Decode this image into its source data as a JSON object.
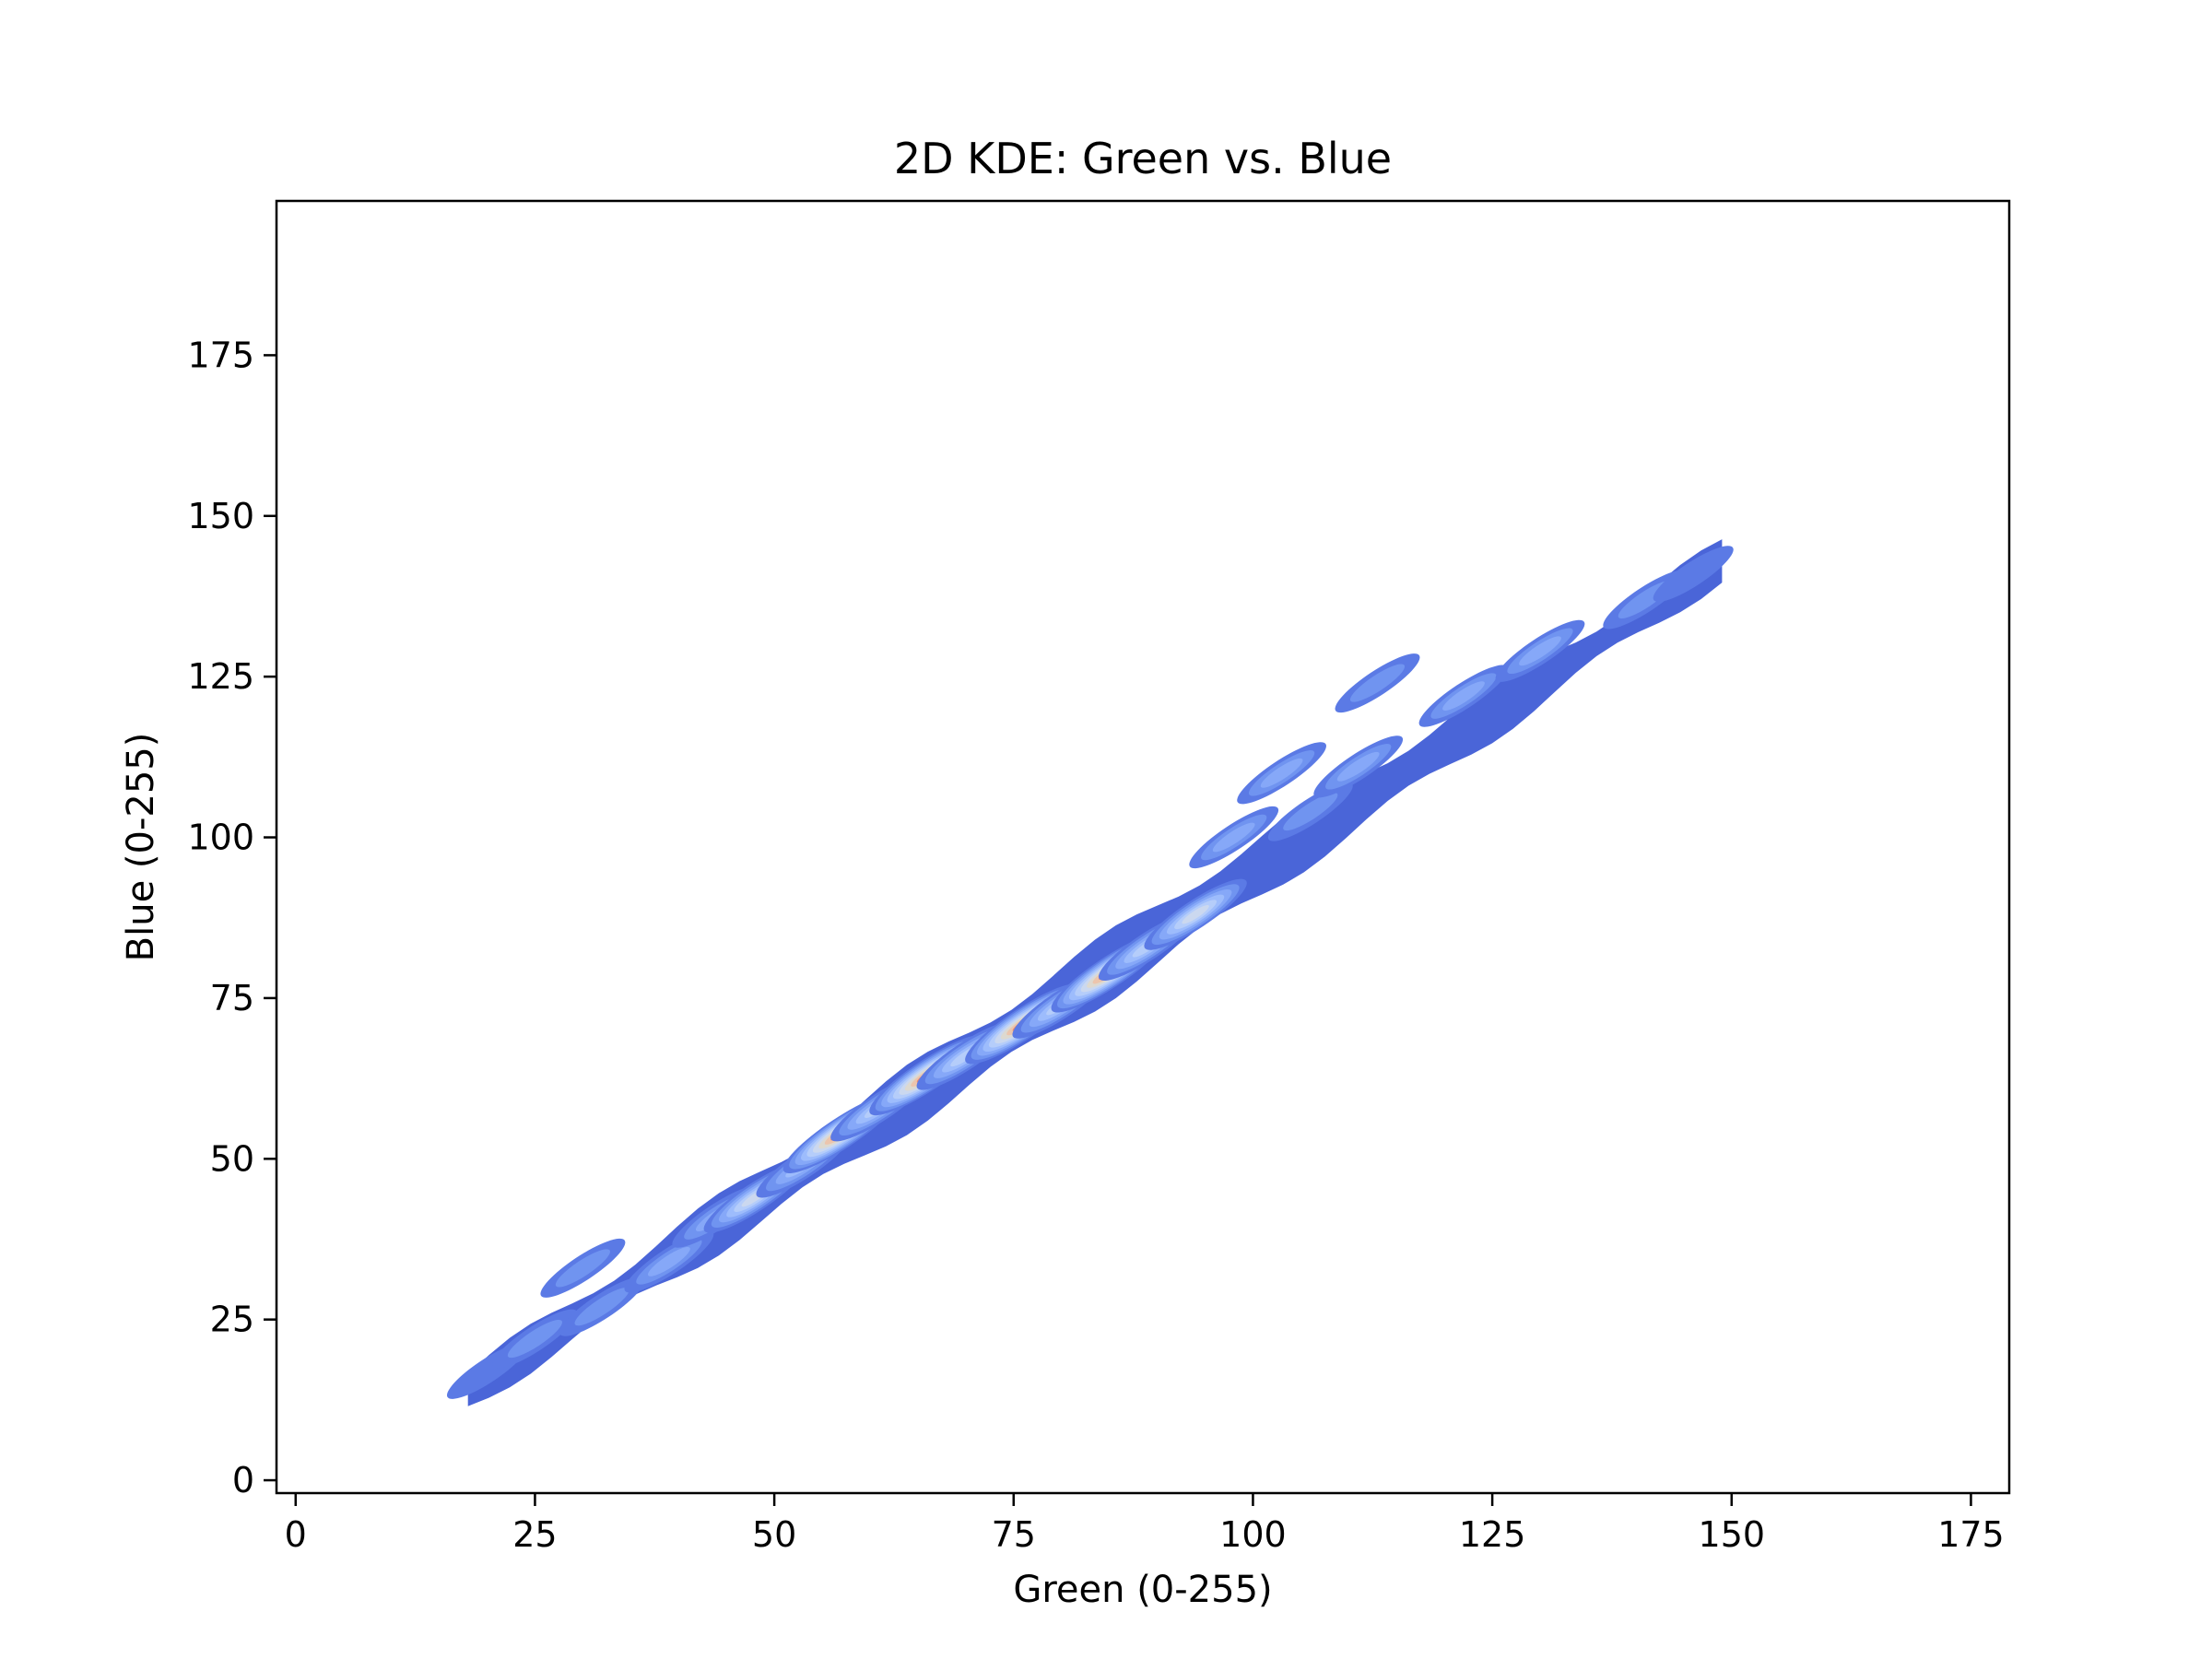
{
  "chart_data": {
    "type": "heatmap",
    "subtype": "2d-kde-filled-contour",
    "title": "2D KDE: Green vs. Blue",
    "xlabel": "Green (0-255)",
    "ylabel": "Blue (0-255)",
    "xlim": [
      -2,
      179
    ],
    "ylim": [
      -2,
      199
    ],
    "x_ticks": [
      0,
      25,
      50,
      75,
      100,
      125,
      150,
      175
    ],
    "y_ticks": [
      0,
      25,
      50,
      75,
      100,
      125,
      150,
      175
    ],
    "grid": false,
    "colormap": "coolwarm",
    "colors": {
      "levels": [
        "#4a65d8",
        "#5b7ae5",
        "#7094f0",
        "#86a8f8",
        "#9dbcfc",
        "#b5cdfa",
        "#cbd8ef",
        "#ddd9d0",
        "#ecc5ad",
        "#ee8a6c"
      ],
      "axes": "#000000",
      "background": "#ffffff"
    },
    "band": {
      "start": [
        18,
        14
      ],
      "end": [
        149,
        143
      ],
      "half_width_blue": 4.5
    },
    "density_peaks": [
      {
        "x": 20,
        "y": 17,
        "level": 1
      },
      {
        "x": 25,
        "y": 22,
        "level": 2
      },
      {
        "x": 30,
        "y": 33,
        "level": 2
      },
      {
        "x": 32,
        "y": 27,
        "level": 2
      },
      {
        "x": 39,
        "y": 34,
        "level": 3
      },
      {
        "x": 44,
        "y": 41,
        "level": 3
      },
      {
        "x": 48,
        "y": 44,
        "level": 6
      },
      {
        "x": 53,
        "y": 49,
        "level": 4
      },
      {
        "x": 57,
        "y": 54,
        "level": 9
      },
      {
        "x": 61,
        "y": 58,
        "level": 5
      },
      {
        "x": 66,
        "y": 63,
        "level": 9
      },
      {
        "x": 70,
        "y": 66,
        "level": 5
      },
      {
        "x": 76,
        "y": 71,
        "level": 9
      },
      {
        "x": 80,
        "y": 74,
        "level": 5
      },
      {
        "x": 85,
        "y": 79,
        "level": 9
      },
      {
        "x": 89,
        "y": 83,
        "level": 5
      },
      {
        "x": 94,
        "y": 88,
        "level": 6
      },
      {
        "x": 98,
        "y": 100,
        "level": 3
      },
      {
        "x": 103,
        "y": 110,
        "level": 3
      },
      {
        "x": 106,
        "y": 104,
        "level": 2
      },
      {
        "x": 111,
        "y": 111,
        "level": 3
      },
      {
        "x": 113,
        "y": 124,
        "level": 2
      },
      {
        "x": 122,
        "y": 122,
        "level": 3
      },
      {
        "x": 130,
        "y": 129,
        "level": 3
      },
      {
        "x": 141,
        "y": 137,
        "level": 2
      },
      {
        "x": 146,
        "y": 141,
        "level": 1
      }
    ]
  }
}
